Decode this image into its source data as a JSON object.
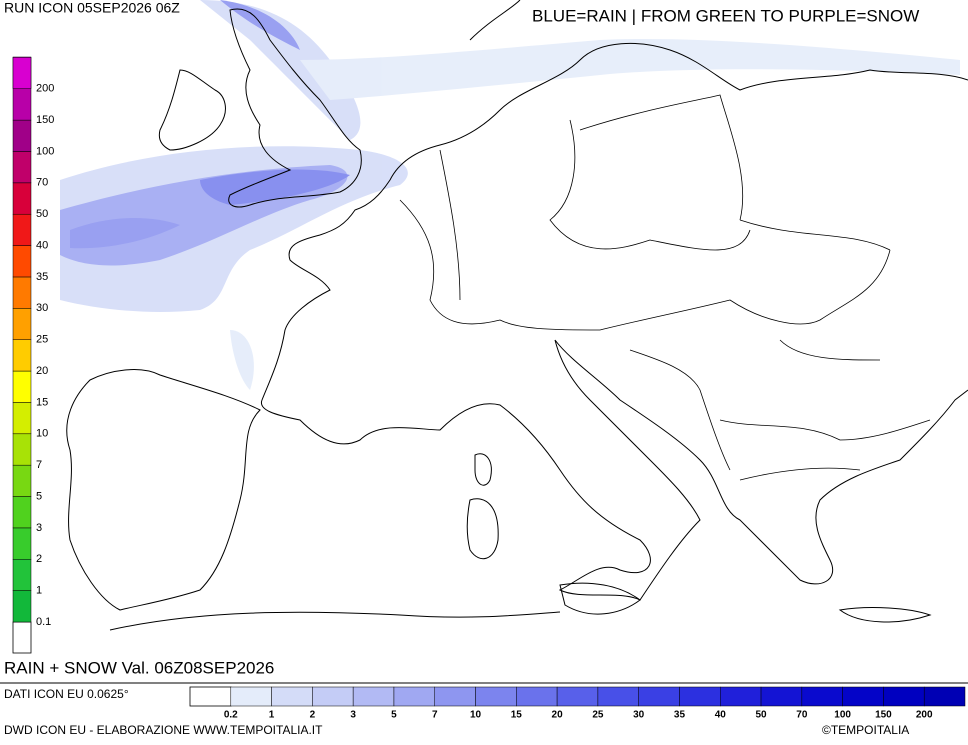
{
  "header": {
    "run": "RUN ICON 05SEP2026 06Z",
    "legend_note": "BLUE=RAIN | FROM GREEN TO PURPLE=SNOW"
  },
  "snow_scale": [
    {
      "label": "0.1",
      "color": "#12b83a"
    },
    {
      "label": "1",
      "color": "#22c33a"
    },
    {
      "label": "2",
      "color": "#38cc2c"
    },
    {
      "label": "3",
      "color": "#50d21e"
    },
    {
      "label": "5",
      "color": "#78d812"
    },
    {
      "label": "7",
      "color": "#a8e206"
    },
    {
      "label": "10",
      "color": "#d4ee00"
    },
    {
      "label": "15",
      "color": "#ffff00"
    },
    {
      "label": "20",
      "color": "#ffcc00"
    },
    {
      "label": "25",
      "color": "#ffa000"
    },
    {
      "label": "30",
      "color": "#ff7a00"
    },
    {
      "label": "35",
      "color": "#ff4a00"
    },
    {
      "label": "40",
      "color": "#f01818"
    },
    {
      "label": "50",
      "color": "#d8003a"
    },
    {
      "label": "70",
      "color": "#c0006a"
    },
    {
      "label": "100",
      "color": "#a00088"
    },
    {
      "label": "150",
      "color": "#b800a8"
    },
    {
      "label": "200",
      "color": "#d800d0"
    }
  ],
  "validity": "RAIN + SNOW Val. 06Z08SEP2026",
  "source": "DATI ICON EU 0.0625°",
  "rain_scale": [
    {
      "label": "0.2",
      "color": "#e4ecfa"
    },
    {
      "label": "1",
      "color": "#d4dcf8"
    },
    {
      "label": "2",
      "color": "#c4ccf6"
    },
    {
      "label": "3",
      "color": "#b2baf4"
    },
    {
      "label": "5",
      "color": "#a0a8f2"
    },
    {
      "label": "7",
      "color": "#8e96f0"
    },
    {
      "label": "10",
      "color": "#7c84ee"
    },
    {
      "label": "15",
      "color": "#6a72ec"
    },
    {
      "label": "20",
      "color": "#5860ea"
    },
    {
      "label": "25",
      "color": "#4850e8"
    },
    {
      "label": "30",
      "color": "#3a40e4"
    },
    {
      "label": "35",
      "color": "#2c30e0"
    },
    {
      "label": "40",
      "color": "#2020da"
    },
    {
      "label": "50",
      "color": "#1414d4"
    },
    {
      "label": "70",
      "color": "#0a0ace"
    },
    {
      "label": "100",
      "color": "#0404c8"
    },
    {
      "label": "150",
      "color": "#0000c0"
    },
    {
      "label": "200",
      "color": "#0000b4"
    }
  ],
  "footer": {
    "credit": "DWD ICON EU - ELABORAZIONE WWW.TEMPOITALIA.IT",
    "copyright": "©TEMPOITALIA"
  }
}
